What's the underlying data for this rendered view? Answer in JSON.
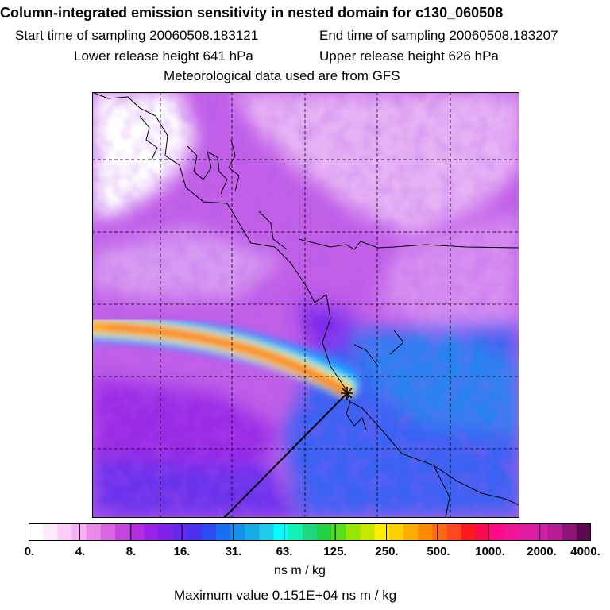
{
  "header": {
    "title": "Column-integrated emission sensitivity in nested domain for c130_060508",
    "start_sampling": "Start time of sampling 20060508.183121",
    "end_sampling": "End time of sampling 20060508.183207",
    "lower_release": "Lower release height  641 hPa",
    "upper_release": "Upper release height  626 hPa",
    "met_data": "Meteorological data used are from GFS"
  },
  "colorbar": {
    "colors": [
      "#ffffff",
      "#fde8fc",
      "#fbcdf8",
      "#f6b0f3",
      "#e98ae8",
      "#d766e0",
      "#c548de",
      "#b22ee0",
      "#9a22e6",
      "#7f22ea",
      "#6428ee",
      "#4a32f0",
      "#2f4cf2",
      "#1a70f2",
      "#1690ec",
      "#18ace6",
      "#20ccec",
      "#00ffff",
      "#12f0b4",
      "#1ed880",
      "#22d040",
      "#58de1a",
      "#96e600",
      "#c8e600",
      "#ffee00",
      "#ffd000",
      "#ffae00",
      "#ff8a00",
      "#ff6a10",
      "#ff4820",
      "#ff1a20",
      "#ff0a50",
      "#ff0a88",
      "#f01498",
      "#e01ca0",
      "#d21ea8",
      "#b61c96",
      "#8e1478",
      "#5e0a52"
    ],
    "tick_labels": [
      "0.",
      "4.",
      "8.",
      "16.",
      "31.",
      "63.",
      "125.",
      "250.",
      "500.",
      "1000.",
      "2000.",
      "4000."
    ],
    "units": "ns m / kg"
  },
  "footer": {
    "maximum_value": "Maximum value  0.151E+04 ns m / kg"
  },
  "map": {
    "plume_colors": [
      "#ff9a00",
      "#ffe000",
      "#2af0ff",
      "#2a8cff"
    ],
    "receptor_marker": "star"
  }
}
